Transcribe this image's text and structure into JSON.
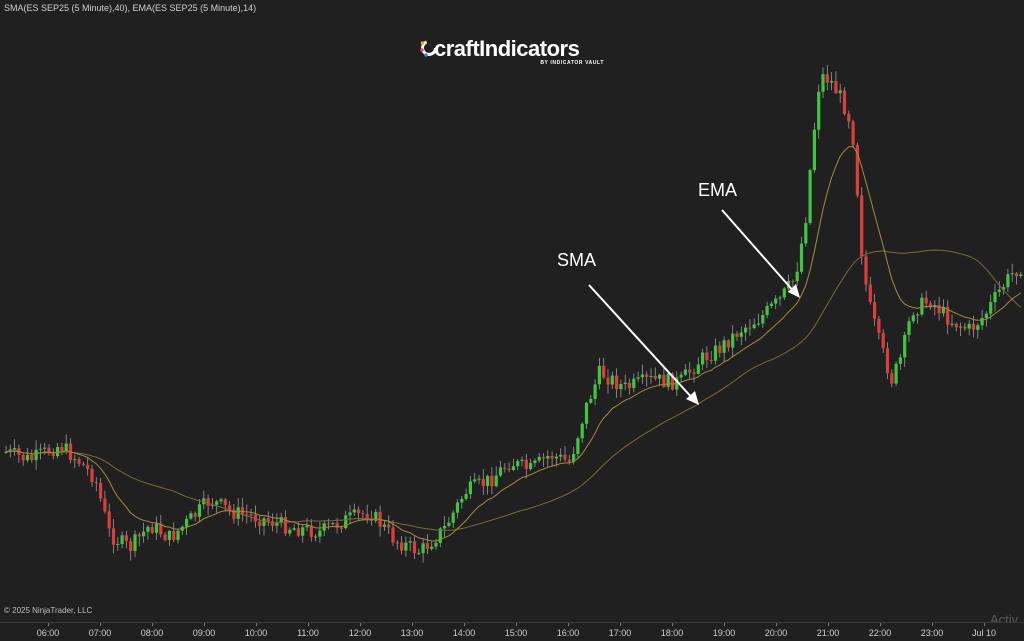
{
  "indicator_label": "SMA(ES SEP25 (5 Minute),40), EMA(ES SEP25 (5 Minute),14)",
  "logo": {
    "text": "craftIndicators",
    "subtitle": "BY INDICATOR VAULT"
  },
  "annotations": {
    "ema": "EMA",
    "sma": "SMA"
  },
  "copyright": "© 2025 NinjaTrader, LLC",
  "watermark": "Activ",
  "colors": {
    "background": "#202020",
    "up_candle": "#3cc83c",
    "down_candle": "#e03c3c",
    "wick": "#9a9a9a",
    "sma_line": "#7a6a3a",
    "ema_line": "#a88a3c",
    "arrow": "#ffffff"
  },
  "time_axis": {
    "labels": [
      "06:00",
      "07:00",
      "08:00",
      "09:00",
      "10:00",
      "11:00",
      "12:00",
      "13:00",
      "14:00",
      "15:00",
      "16:00",
      "17:00",
      "18:00",
      "19:00",
      "20:00",
      "21:00",
      "22:00",
      "23:00",
      "Jul 10"
    ]
  },
  "chart_data": {
    "type": "candlestick",
    "series": [
      {
        "name": "SMA(ES SEP25 (5 Minute),40)"
      },
      {
        "name": "EMA(ES SEP25 (5 Minute),14)"
      }
    ],
    "x_categories": [
      "06:00",
      "07:00",
      "08:00",
      "09:00",
      "10:00",
      "11:00",
      "12:00",
      "13:00",
      "14:00",
      "15:00",
      "16:00",
      "17:00",
      "18:00",
      "19:00",
      "20:00",
      "21:00",
      "22:00",
      "23:00",
      "Jul 10"
    ]
  }
}
